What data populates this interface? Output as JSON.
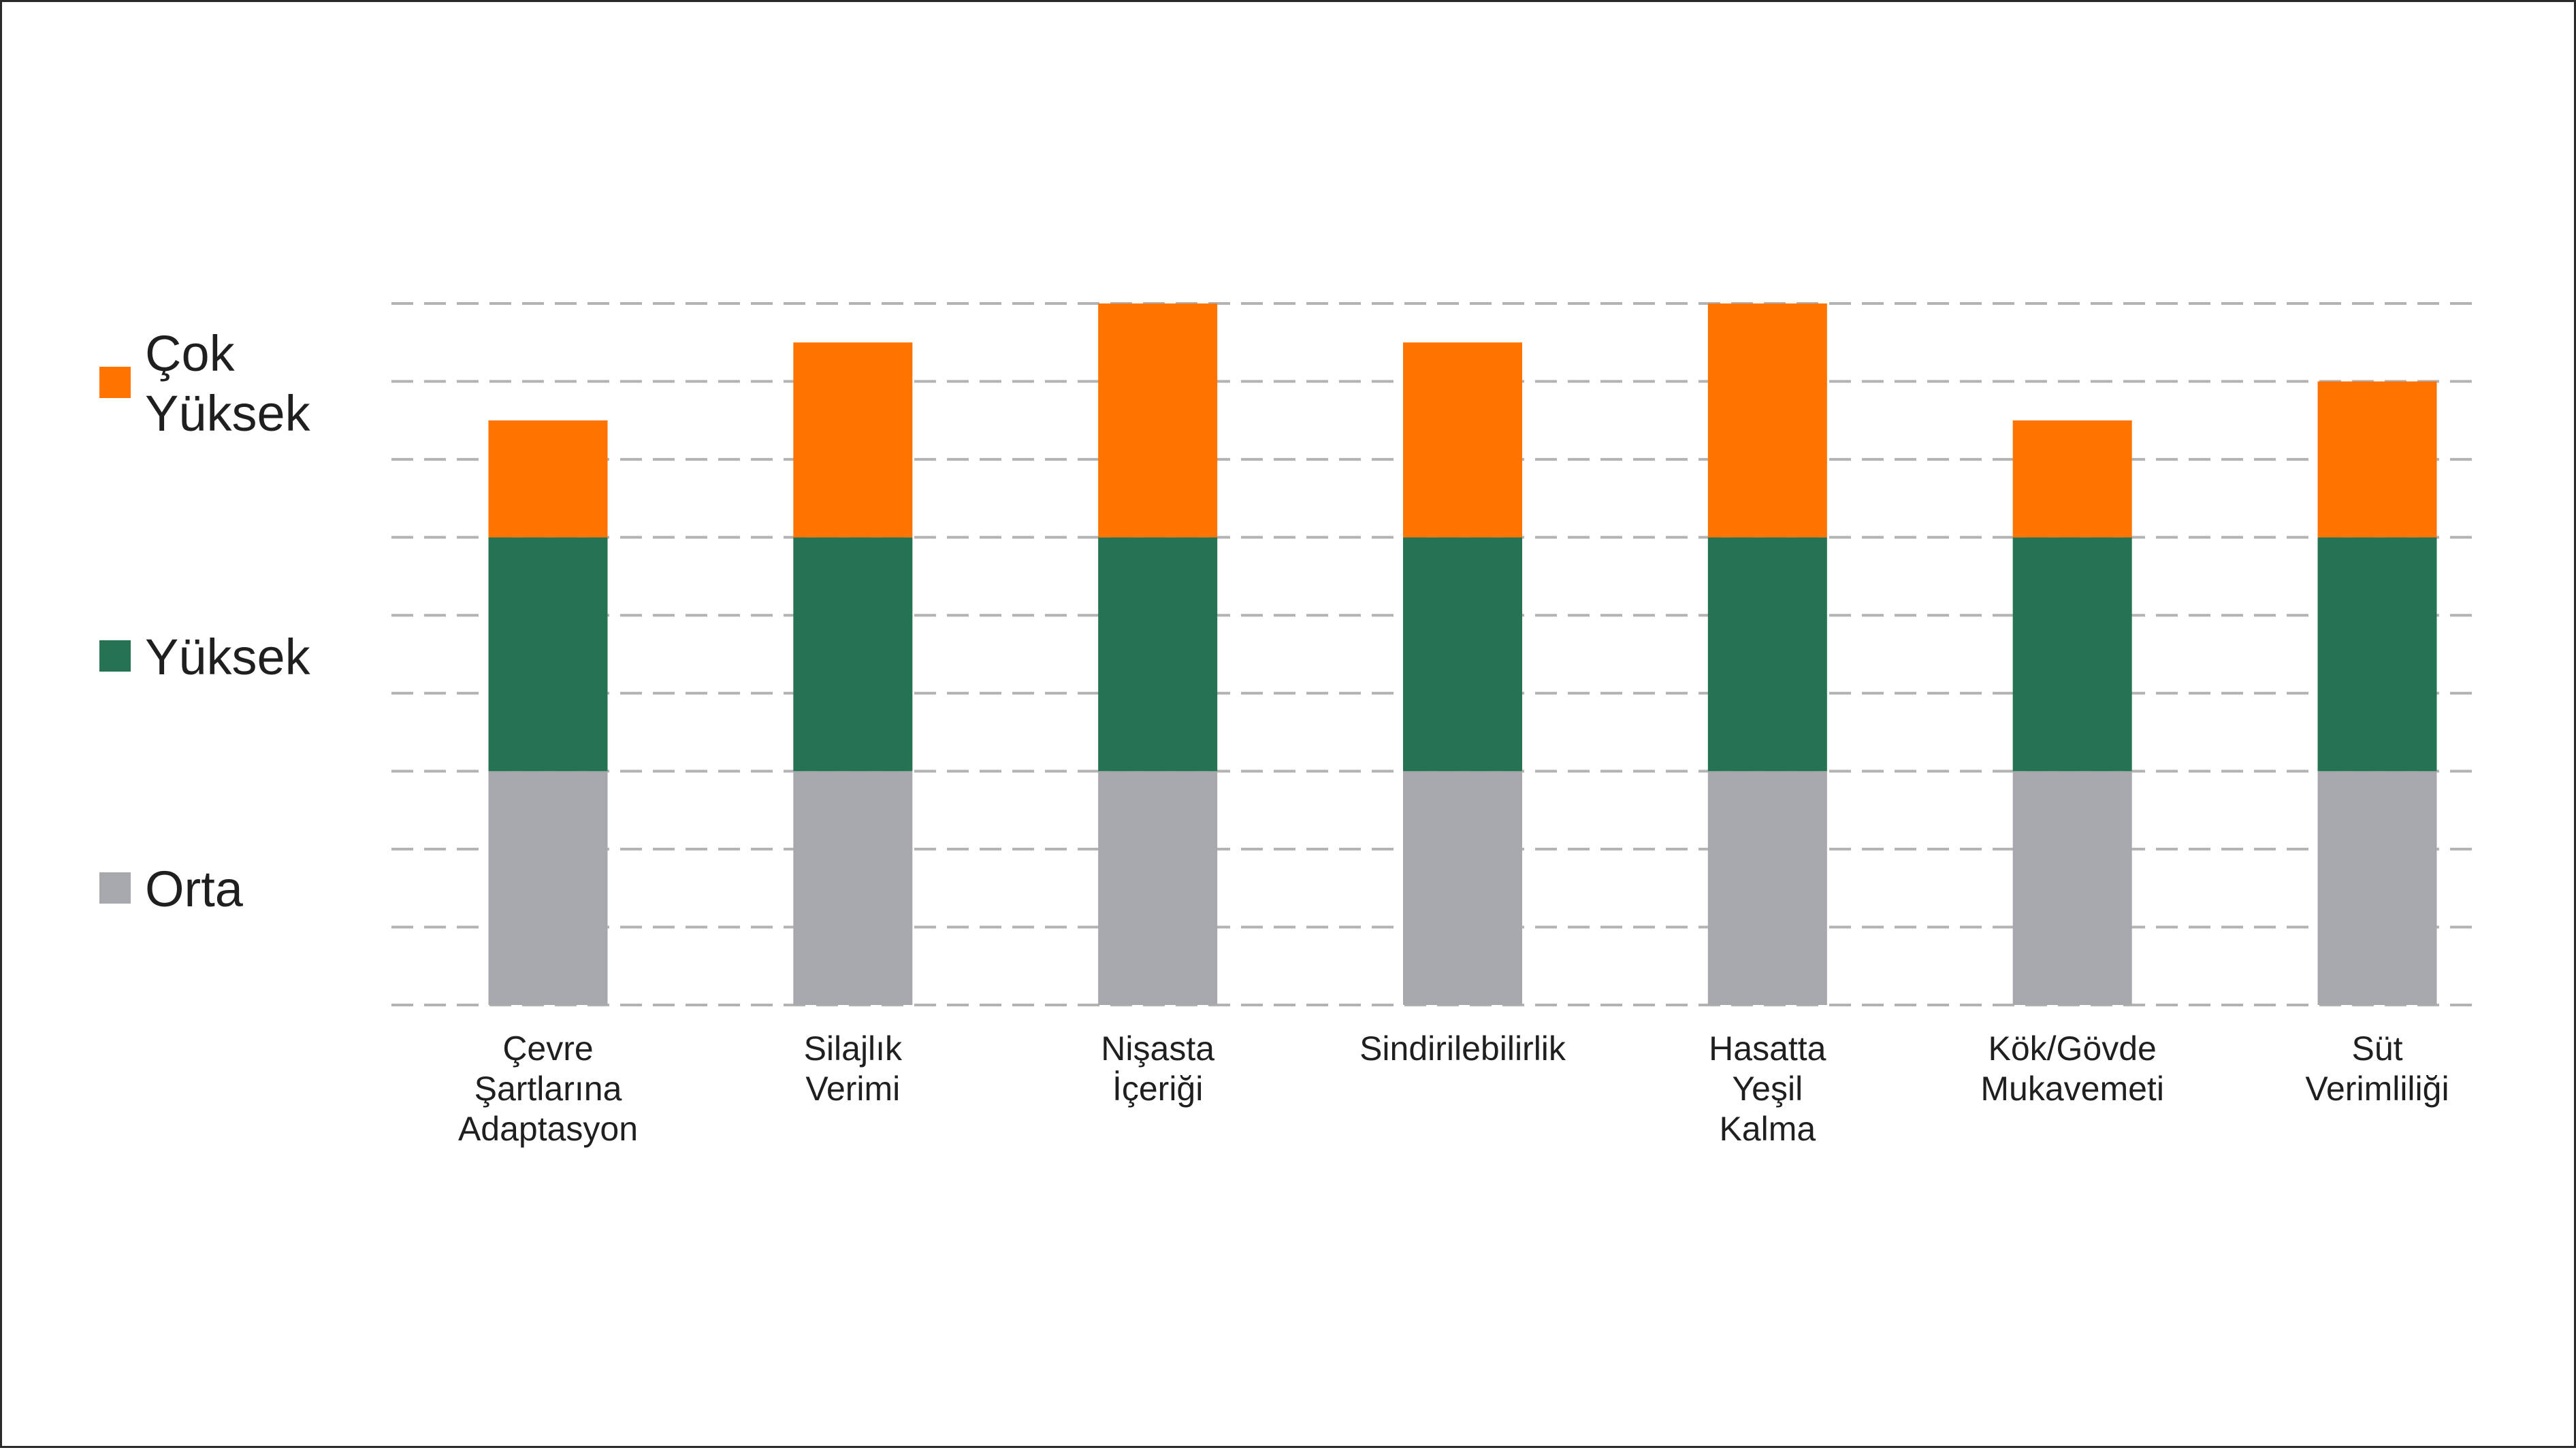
{
  "chart_data": {
    "type": "bar",
    "stacked": true,
    "title": "",
    "xlabel": "",
    "ylabel": "",
    "ylim": [
      0,
      9
    ],
    "grid": true,
    "grid_style": "dashed",
    "legend_position": "left",
    "categories": [
      [
        "Çevre",
        "Şartlarına",
        "Adaptasyon"
      ],
      [
        "Silajlık",
        "Verimi"
      ],
      [
        "Nişasta",
        "İçeriği"
      ],
      [
        "Sindirilebilirlik"
      ],
      [
        "Hasatta",
        "Yeşil",
        "Kalma"
      ],
      [
        "Kök/Gövde",
        "Mukavemeti"
      ],
      [
        "Süt",
        "Verimliliği"
      ]
    ],
    "series": [
      {
        "name": "Orta",
        "color": "#a7a8ab",
        "values": [
          3,
          3,
          3,
          3,
          3,
          3,
          3
        ]
      },
      {
        "name": "Yüksek",
        "color": "#267353",
        "values": [
          3,
          3,
          3,
          3,
          3,
          3,
          3
        ]
      },
      {
        "name": "Çok Yüksek",
        "color": "#ff7300",
        "values": [
          1.5,
          2.5,
          3,
          2.5,
          3,
          1.5,
          2
        ]
      }
    ],
    "legend": [
      {
        "series": 2,
        "lines": [
          "Çok",
          "Yüksek"
        ]
      },
      {
        "series": 1,
        "lines": [
          "Yüksek"
        ]
      },
      {
        "series": 0,
        "lines": [
          "Orta"
        ]
      }
    ]
  }
}
